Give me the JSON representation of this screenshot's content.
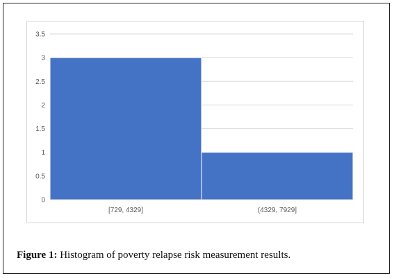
{
  "chart_data": {
    "type": "bar",
    "categories": [
      "[729, 4329]",
      "(4329, 7929]"
    ],
    "values": [
      3,
      1
    ],
    "title": "",
    "xlabel": "",
    "ylabel": "",
    "ylim": [
      0,
      3.5
    ],
    "yticks": [
      "0",
      "0.5",
      "1",
      "1.5",
      "2",
      "2.5",
      "3",
      "3.5"
    ],
    "grid": true,
    "bar_color": "#4472c4"
  },
  "caption": {
    "label": "Figure 1:",
    "text": "Histogram of poverty relapse risk measurement results."
  }
}
